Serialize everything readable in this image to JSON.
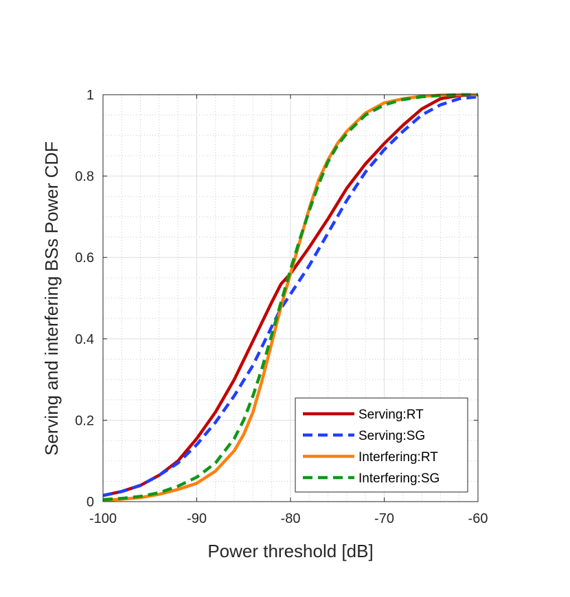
{
  "chart_data": {
    "type": "line",
    "title": "",
    "xlabel": "Power threshold [dB]",
    "ylabel": "Serving and interfering BSs Power CDF",
    "xlim": [
      -100,
      -60
    ],
    "ylim": [
      0,
      1
    ],
    "xticks": [
      -100,
      -90,
      -80,
      -70,
      -60
    ],
    "yticks": [
      0,
      0.2,
      0.4,
      0.6,
      0.8,
      1
    ],
    "xtick_labels": [
      "-100",
      "-90",
      "-80",
      "-70",
      "-60"
    ],
    "ytick_labels": [
      "0",
      "0.2",
      "0.4",
      "0.6",
      "0.8",
      "1"
    ],
    "grid": true,
    "minor_grid": true,
    "legend_position": "bottom-right",
    "series": [
      {
        "name": "Serving:RT",
        "color": "#c00000",
        "style": "solid",
        "x": [
          -100,
          -98,
          -96,
          -94,
          -92,
          -90,
          -88,
          -86,
          -84,
          -82,
          -81,
          -80,
          -78,
          -76,
          -74,
          -72,
          -70,
          -68,
          -66,
          -64,
          -62,
          -60
        ],
        "y": [
          0.015,
          0.025,
          0.04,
          0.065,
          0.1,
          0.155,
          0.22,
          0.3,
          0.395,
          0.49,
          0.535,
          0.56,
          0.625,
          0.695,
          0.77,
          0.83,
          0.88,
          0.925,
          0.965,
          0.99,
          0.998,
          1.0
        ]
      },
      {
        "name": "Serving:SG",
        "color": "#1f3fff",
        "style": "dashed",
        "x": [
          -100,
          -98,
          -96,
          -94,
          -92,
          -90,
          -88,
          -86,
          -84,
          -82,
          -81,
          -80,
          -78,
          -76,
          -74,
          -72,
          -70,
          -68,
          -66,
          -64,
          -62,
          -60
        ],
        "y": [
          0.015,
          0.025,
          0.04,
          0.065,
          0.095,
          0.14,
          0.195,
          0.26,
          0.335,
          0.43,
          0.475,
          0.51,
          0.58,
          0.66,
          0.74,
          0.81,
          0.865,
          0.91,
          0.95,
          0.975,
          0.99,
          0.995
        ]
      },
      {
        "name": "Interfering:RT",
        "color": "#ff7f0e",
        "style": "solid",
        "x": [
          -100,
          -98,
          -96,
          -94,
          -92,
          -90,
          -88,
          -86,
          -85,
          -84,
          -83,
          -82,
          -81,
          -80,
          -79,
          -78,
          -77,
          -76,
          -75,
          -74,
          -72,
          -70,
          -68,
          -66,
          -64,
          -62,
          -60
        ],
        "y": [
          0.003,
          0.006,
          0.01,
          0.018,
          0.03,
          0.045,
          0.075,
          0.125,
          0.165,
          0.22,
          0.3,
          0.39,
          0.48,
          0.56,
          0.64,
          0.72,
          0.79,
          0.84,
          0.88,
          0.91,
          0.955,
          0.98,
          0.99,
          0.996,
          0.999,
          1.0,
          1.0
        ]
      },
      {
        "name": "Interfering:SG",
        "color": "#109618",
        "style": "dashed",
        "x": [
          -100,
          -98,
          -96,
          -94,
          -92,
          -90,
          -88,
          -86,
          -85,
          -84,
          -83,
          -82,
          -81,
          -80,
          -79,
          -78,
          -77,
          -76,
          -75,
          -74,
          -72,
          -70,
          -68,
          -66,
          -64,
          -62,
          -60
        ],
        "y": [
          0.005,
          0.008,
          0.013,
          0.022,
          0.038,
          0.06,
          0.095,
          0.155,
          0.2,
          0.26,
          0.33,
          0.41,
          0.49,
          0.57,
          0.645,
          0.715,
          0.78,
          0.835,
          0.875,
          0.905,
          0.95,
          0.975,
          0.988,
          0.995,
          0.998,
          1.0,
          1.0
        ]
      }
    ]
  }
}
